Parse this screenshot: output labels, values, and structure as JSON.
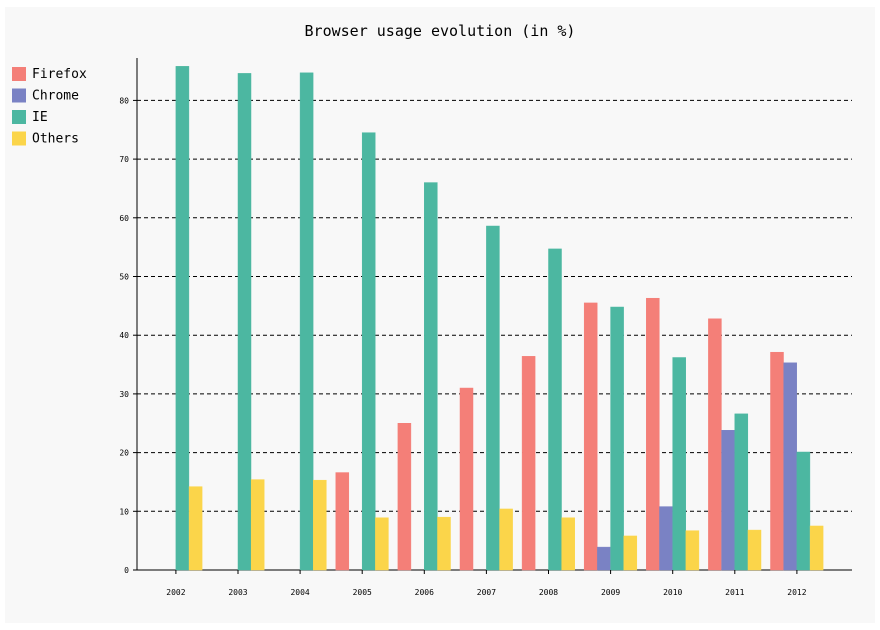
{
  "chart_data": {
    "type": "bar",
    "title": "Browser usage evolution (in %)",
    "xlabel": "",
    "ylabel": "",
    "categories": [
      "2002",
      "2003",
      "2004",
      "2005",
      "2006",
      "2007",
      "2008",
      "2009",
      "2010",
      "2011",
      "2012"
    ],
    "series": [
      {
        "name": "Firefox",
        "color": "#f47f78",
        "values": [
          null,
          null,
          0,
          16.6,
          25,
          31,
          36.4,
          45.5,
          46.3,
          42.8,
          37.1
        ]
      },
      {
        "name": "Chrome",
        "color": "#7a82c4",
        "values": [
          null,
          null,
          null,
          null,
          null,
          null,
          null,
          3.9,
          10.8,
          23.8,
          35.3
        ]
      },
      {
        "name": "IE",
        "color": "#4cb7a1",
        "values": [
          85.8,
          84.6,
          84.7,
          74.5,
          66,
          58.6,
          54.7,
          44.8,
          36.2,
          26.6,
          20.1
        ]
      },
      {
        "name": "Others",
        "color": "#fbd54a",
        "values": [
          14.2,
          15.4,
          15.3,
          8.9,
          9,
          10.4,
          8.9,
          5.8,
          6.7,
          6.8,
          7.5
        ]
      }
    ],
    "yticks": [
      0,
      10,
      20,
      30,
      40,
      50,
      60,
      70,
      80
    ],
    "ylim": [
      0,
      87
    ],
    "grid": true,
    "legend_position": "top-left"
  }
}
